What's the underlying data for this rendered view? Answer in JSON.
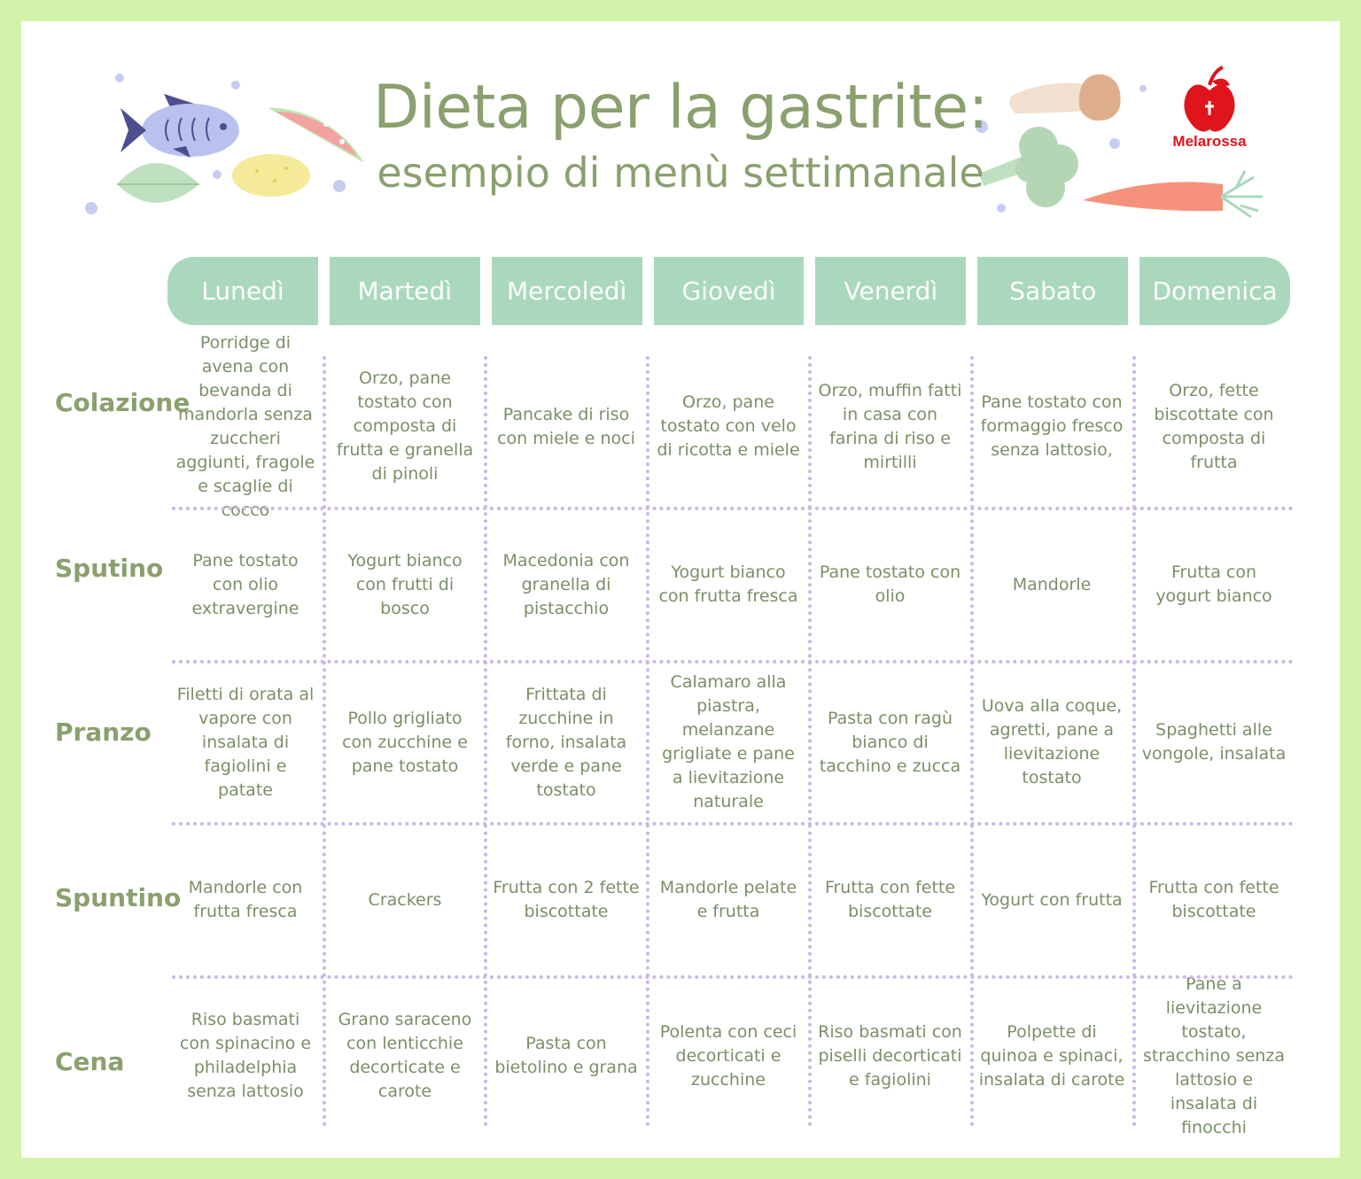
{
  "title": "Dieta per la gastrite:",
  "subtitle": "esempio di menù settimanale",
  "brand": {
    "name": "Melarossa",
    "color": "#e0141c",
    "logo_icon": "apple-icon"
  },
  "colors": {
    "background": "#d2f2aa",
    "title": "#8aa06e",
    "day_header": "#a9d8bd",
    "divider": "#c9b6ea",
    "cell_text": "#7a8f66"
  },
  "decorations": [
    "fish-icon",
    "watermelon-icon",
    "lemon-icon",
    "leaf-icon",
    "mushroom-icon",
    "broccoli-icon",
    "carrot-icon"
  ],
  "days": [
    "Lunedì",
    "Martedì",
    "Mercoledì",
    "Giovedì",
    "Venerdì",
    "Sabato",
    "Domenica"
  ],
  "meals": [
    {
      "label": "Colazione",
      "cells": [
        "Porridge di avena con bevanda di mandorla senza zuccheri aggiunti, fragole e scaglie di cocco",
        "Orzo, pane tostato con composta di frutta e granella di pinoli",
        "Pancake di riso con miele e noci",
        "Orzo, pane tostato con velo di ricotta e miele",
        "Orzo, muffin fatti in casa con farina di riso e mirtilli",
        "Pane tostato con formaggio fresco senza lattosio,",
        "Orzo, fette biscottate con composta di frutta"
      ]
    },
    {
      "label": "Sputino",
      "cells": [
        "Pane tostato con olio extravergine",
        "Yogurt bianco con frutti di bosco",
        "Macedonia con granella di pistacchio",
        "Yogurt bianco con frutta fresca",
        "Pane tostato con olio",
        "Mandorle",
        "Frutta con yogurt bianco"
      ]
    },
    {
      "label": "Pranzo",
      "cells": [
        "Filetti di orata al vapore con insalata di fagiolini e patate",
        "Pollo grigliato con zucchine e pane tostato",
        "Frittata di zucchine in forno, insalata verde e pane tostato",
        "Calamaro alla piastra, melanzane grigliate e pane a lievitazione naturale",
        "Pasta con ragù bianco di tacchino e zucca",
        "Uova alla coque, agretti, pane a lievitazione tostato",
        "Spaghetti alle vongole, insalata"
      ]
    },
    {
      "label": "Spuntino",
      "cells": [
        "Mandorle con frutta fresca",
        "Crackers",
        "Frutta con 2 fette biscottate",
        "Mandorle pelate e frutta",
        "Frutta con fette biscottate",
        "Yogurt con frutta",
        "Frutta con fette biscottate"
      ]
    },
    {
      "label": "Cena",
      "cells": [
        "Riso basmati con spinacino e philadelphia senza lattosio",
        "Grano saraceno con lenticchie decorticate e carote",
        "Pasta con bietolino e grana",
        "Polenta con ceci decorticati e zucchine",
        "Riso basmati con piselli decorticati e fagiolini",
        "Polpette di quinoa e spinaci, insalata di carote",
        "Pane a lievitazione tostato, stracchino senza lattosio e insalata di finocchi"
      ]
    }
  ]
}
